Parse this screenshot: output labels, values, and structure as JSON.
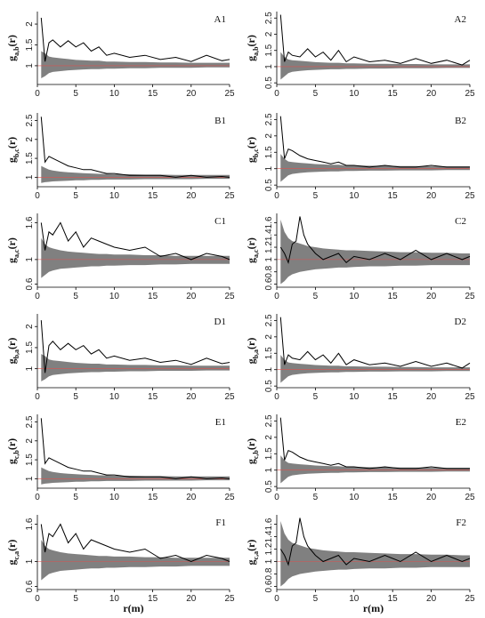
{
  "figure": {
    "x_axis_label": "r(m)",
    "y_label_prefix": "g",
    "y_label_suffix": "(r)"
  },
  "colors": {
    "envelope": "#808080",
    "observed": "#000000",
    "reference": "#d9534f",
    "axis": "#000000"
  },
  "chart_data": [
    {
      "type": "line",
      "label": "A1",
      "subscript": "a,b",
      "xlim": [
        0,
        25
      ],
      "ylim": [
        0.55,
        2.3
      ],
      "yticks": [
        0.5,
        1.0,
        1.5,
        2.0
      ],
      "xticks": [
        0,
        5,
        10,
        15,
        20,
        25
      ],
      "reference": 1.0,
      "x": [
        0.5,
        1,
        1.5,
        2,
        3,
        4,
        5,
        6,
        7,
        8,
        9,
        10,
        12,
        14,
        16,
        18,
        20,
        22,
        24,
        25
      ],
      "observed": [
        2.15,
        1.1,
        1.55,
        1.62,
        1.45,
        1.6,
        1.45,
        1.55,
        1.35,
        1.45,
        1.25,
        1.3,
        1.2,
        1.25,
        1.15,
        1.2,
        1.1,
        1.25,
        1.12,
        1.15
      ],
      "env_upper": [
        1.35,
        1.3,
        1.22,
        1.2,
        1.18,
        1.16,
        1.14,
        1.13,
        1.12,
        1.12,
        1.1,
        1.1,
        1.09,
        1.09,
        1.08,
        1.08,
        1.07,
        1.07,
        1.07,
        1.07
      ],
      "env_lower": [
        0.7,
        0.75,
        0.82,
        0.85,
        0.87,
        0.89,
        0.9,
        0.91,
        0.92,
        0.92,
        0.93,
        0.93,
        0.94,
        0.94,
        0.95,
        0.95,
        0.95,
        0.96,
        0.96,
        0.96
      ]
    },
    {
      "type": "line",
      "label": "A2",
      "subscript": "a,b",
      "xlim": [
        0,
        25
      ],
      "ylim": [
        0.45,
        2.7
      ],
      "yticks": [
        0.5,
        1.0,
        1.5,
        2.0,
        2.5
      ],
      "xticks": [
        0,
        5,
        10,
        15,
        20,
        25
      ],
      "reference": 1.0,
      "x": [
        0.5,
        1,
        1.5,
        2,
        3,
        4,
        5,
        6,
        7,
        8,
        9,
        10,
        12,
        14,
        16,
        18,
        20,
        22,
        24,
        25
      ],
      "observed": [
        2.6,
        1.15,
        1.45,
        1.35,
        1.3,
        1.55,
        1.3,
        1.45,
        1.2,
        1.5,
        1.15,
        1.3,
        1.15,
        1.2,
        1.1,
        1.25,
        1.1,
        1.2,
        1.05,
        1.2
      ],
      "env_upper": [
        1.45,
        1.3,
        1.22,
        1.2,
        1.18,
        1.16,
        1.14,
        1.13,
        1.12,
        1.12,
        1.1,
        1.1,
        1.09,
        1.09,
        1.08,
        1.08,
        1.07,
        1.07,
        1.07,
        1.07
      ],
      "env_lower": [
        0.6,
        0.7,
        0.8,
        0.84,
        0.87,
        0.89,
        0.9,
        0.91,
        0.92,
        0.92,
        0.93,
        0.93,
        0.94,
        0.94,
        0.95,
        0.95,
        0.95,
        0.96,
        0.96,
        0.96
      ]
    },
    {
      "type": "line",
      "label": "B1",
      "subscript": "b,c",
      "xlim": [
        0,
        25
      ],
      "ylim": [
        0.75,
        2.7
      ],
      "yticks": [
        1.0,
        1.5,
        2.0,
        2.5
      ],
      "xticks": [
        0,
        5,
        10,
        15,
        20,
        25
      ],
      "reference": 1.0,
      "x": [
        0.5,
        1,
        1.5,
        2,
        3,
        4,
        5,
        6,
        7,
        8,
        9,
        10,
        12,
        14,
        16,
        18,
        20,
        22,
        24,
        25
      ],
      "observed": [
        2.6,
        1.4,
        1.55,
        1.5,
        1.4,
        1.3,
        1.25,
        1.2,
        1.2,
        1.15,
        1.1,
        1.1,
        1.05,
        1.05,
        1.05,
        1.0,
        1.05,
        1.0,
        1.02,
        1.0
      ],
      "env_upper": [
        1.3,
        1.25,
        1.2,
        1.18,
        1.15,
        1.13,
        1.12,
        1.11,
        1.1,
        1.09,
        1.09,
        1.08,
        1.08,
        1.07,
        1.07,
        1.06,
        1.06,
        1.06,
        1.06,
        1.06
      ],
      "env_lower": [
        0.85,
        0.87,
        0.88,
        0.89,
        0.9,
        0.91,
        0.92,
        0.92,
        0.93,
        0.93,
        0.94,
        0.94,
        0.94,
        0.95,
        0.95,
        0.95,
        0.95,
        0.96,
        0.96,
        0.96
      ]
    },
    {
      "type": "line",
      "label": "B2",
      "subscript": "b,c",
      "xlim": [
        0,
        25
      ],
      "ylim": [
        0.45,
        2.7
      ],
      "yticks": [
        0.5,
        1.0,
        1.5,
        2.0,
        2.5
      ],
      "xticks": [
        0,
        5,
        10,
        15,
        20,
        25
      ],
      "reference": 1.0,
      "x": [
        0.5,
        1,
        1.5,
        2,
        3,
        4,
        5,
        6,
        7,
        8,
        9,
        10,
        12,
        14,
        16,
        18,
        20,
        22,
        24,
        25
      ],
      "observed": [
        2.6,
        1.3,
        1.6,
        1.55,
        1.4,
        1.3,
        1.25,
        1.2,
        1.15,
        1.2,
        1.1,
        1.1,
        1.05,
        1.1,
        1.05,
        1.05,
        1.1,
        1.05,
        1.05,
        1.05
      ],
      "env_upper": [
        1.45,
        1.3,
        1.22,
        1.2,
        1.18,
        1.16,
        1.14,
        1.13,
        1.12,
        1.12,
        1.1,
        1.1,
        1.09,
        1.09,
        1.08,
        1.08,
        1.07,
        1.07,
        1.07,
        1.07
      ],
      "env_lower": [
        0.6,
        0.7,
        0.8,
        0.84,
        0.87,
        0.89,
        0.9,
        0.91,
        0.92,
        0.92,
        0.93,
        0.93,
        0.94,
        0.94,
        0.95,
        0.95,
        0.95,
        0.96,
        0.96,
        0.96
      ]
    },
    {
      "type": "line",
      "label": "C1",
      "subscript": "a,c",
      "xlim": [
        0,
        25
      ],
      "ylim": [
        0.55,
        1.75
      ],
      "yticks": [
        0.6,
        1.0,
        1.6
      ],
      "xticks": [
        0,
        5,
        10,
        15,
        20,
        25
      ],
      "reference": 1.0,
      "x": [
        0.5,
        1,
        1.5,
        2,
        3,
        4,
        5,
        6,
        7,
        8,
        9,
        10,
        12,
        14,
        16,
        18,
        20,
        22,
        24,
        25
      ],
      "observed": [
        1.6,
        1.15,
        1.45,
        1.4,
        1.6,
        1.3,
        1.45,
        1.2,
        1.35,
        1.3,
        1.25,
        1.2,
        1.15,
        1.2,
        1.05,
        1.1,
        1.0,
        1.1,
        1.05,
        1.0
      ],
      "env_upper": [
        1.35,
        1.25,
        1.2,
        1.18,
        1.15,
        1.13,
        1.12,
        1.11,
        1.1,
        1.09,
        1.09,
        1.08,
        1.08,
        1.07,
        1.07,
        1.06,
        1.06,
        1.06,
        1.06,
        1.06
      ],
      "env_lower": [
        0.7,
        0.75,
        0.8,
        0.82,
        0.85,
        0.86,
        0.87,
        0.88,
        0.89,
        0.89,
        0.9,
        0.9,
        0.91,
        0.91,
        0.92,
        0.92,
        0.93,
        0.93,
        0.93,
        0.93
      ]
    },
    {
      "type": "line",
      "label": "C2",
      "subscript": "a,c",
      "xlim": [
        0,
        25
      ],
      "ylim": [
        0.55,
        1.75
      ],
      "yticks": [
        0.6,
        0.8,
        1.0,
        1.2,
        1.4,
        1.6
      ],
      "xticks": [
        0,
        5,
        10,
        15,
        20,
        25
      ],
      "reference": 1.0,
      "x": [
        0.5,
        1,
        1.5,
        2,
        2.5,
        3,
        3.5,
        4,
        5,
        6,
        7,
        8,
        9,
        10,
        12,
        14,
        16,
        18,
        20,
        22,
        24,
        25
      ],
      "observed": [
        1.2,
        1.1,
        0.95,
        1.25,
        1.3,
        1.7,
        1.4,
        1.25,
        1.1,
        1.0,
        1.05,
        1.1,
        0.95,
        1.05,
        1.0,
        1.1,
        1.0,
        1.15,
        1.0,
        1.1,
        1.0,
        1.05
      ],
      "env_upper": [
        1.65,
        1.45,
        1.35,
        1.3,
        1.28,
        1.26,
        1.24,
        1.22,
        1.2,
        1.18,
        1.17,
        1.16,
        1.15,
        1.15,
        1.14,
        1.13,
        1.12,
        1.12,
        1.11,
        1.11,
        1.1,
        1.1
      ],
      "env_lower": [
        0.6,
        0.65,
        0.72,
        0.76,
        0.78,
        0.8,
        0.81,
        0.82,
        0.84,
        0.85,
        0.86,
        0.87,
        0.87,
        0.88,
        0.89,
        0.89,
        0.9,
        0.9,
        0.91,
        0.91,
        0.91,
        0.91
      ]
    },
    {
      "type": "line",
      "label": "D1",
      "subscript": "b,a",
      "xlim": [
        0,
        25
      ],
      "ylim": [
        0.55,
        2.3
      ],
      "yticks": [
        1.0,
        1.5,
        2.0
      ],
      "xticks": [
        0,
        5,
        10,
        15,
        20,
        25
      ],
      "reference": 1.0,
      "x": [
        0.5,
        1,
        1.5,
        2,
        3,
        4,
        5,
        6,
        7,
        8,
        9,
        10,
        12,
        14,
        16,
        18,
        20,
        22,
        24,
        25
      ],
      "observed": [
        2.15,
        0.9,
        1.55,
        1.65,
        1.45,
        1.6,
        1.45,
        1.55,
        1.35,
        1.45,
        1.25,
        1.3,
        1.2,
        1.25,
        1.15,
        1.2,
        1.1,
        1.25,
        1.12,
        1.15
      ],
      "env_upper": [
        1.35,
        1.3,
        1.22,
        1.2,
        1.18,
        1.16,
        1.14,
        1.13,
        1.12,
        1.12,
        1.1,
        1.1,
        1.09,
        1.09,
        1.08,
        1.08,
        1.07,
        1.07,
        1.07,
        1.07
      ],
      "env_lower": [
        0.7,
        0.75,
        0.82,
        0.85,
        0.87,
        0.89,
        0.9,
        0.91,
        0.92,
        0.92,
        0.93,
        0.93,
        0.94,
        0.94,
        0.95,
        0.95,
        0.95,
        0.96,
        0.96,
        0.96
      ]
    },
    {
      "type": "line",
      "label": "D2",
      "subscript": "b,a",
      "xlim": [
        0,
        25
      ],
      "ylim": [
        0.45,
        2.7
      ],
      "yticks": [
        0.5,
        1.0,
        1.5,
        2.0,
        2.5
      ],
      "xticks": [
        0,
        5,
        10,
        15,
        20,
        25
      ],
      "reference": 1.0,
      "x": [
        0.5,
        1,
        1.5,
        2,
        3,
        4,
        5,
        6,
        7,
        8,
        9,
        10,
        12,
        14,
        16,
        18,
        20,
        22,
        24,
        25
      ],
      "observed": [
        2.6,
        1.15,
        1.45,
        1.35,
        1.3,
        1.55,
        1.3,
        1.45,
        1.2,
        1.5,
        1.15,
        1.3,
        1.15,
        1.2,
        1.1,
        1.25,
        1.1,
        1.2,
        1.05,
        1.2
      ],
      "env_upper": [
        1.45,
        1.3,
        1.22,
        1.2,
        1.18,
        1.16,
        1.14,
        1.13,
        1.12,
        1.12,
        1.1,
        1.1,
        1.09,
        1.09,
        1.08,
        1.08,
        1.07,
        1.07,
        1.07,
        1.07
      ],
      "env_lower": [
        0.6,
        0.7,
        0.8,
        0.84,
        0.87,
        0.89,
        0.9,
        0.91,
        0.92,
        0.92,
        0.93,
        0.93,
        0.94,
        0.94,
        0.95,
        0.95,
        0.95,
        0.96,
        0.96,
        0.96
      ]
    },
    {
      "type": "line",
      "label": "E1",
      "subscript": "c,b",
      "xlim": [
        0,
        25
      ],
      "ylim": [
        0.75,
        2.7
      ],
      "yticks": [
        1.0,
        1.5,
        2.0,
        2.5
      ],
      "xticks": [
        0,
        5,
        10,
        15,
        20,
        25
      ],
      "reference": 1.0,
      "x": [
        0.5,
        1,
        1.5,
        2,
        3,
        4,
        5,
        6,
        7,
        8,
        9,
        10,
        12,
        14,
        16,
        18,
        20,
        22,
        24,
        25
      ],
      "observed": [
        2.6,
        1.4,
        1.55,
        1.5,
        1.4,
        1.3,
        1.25,
        1.2,
        1.2,
        1.15,
        1.1,
        1.1,
        1.05,
        1.05,
        1.05,
        1.0,
        1.05,
        1.0,
        1.02,
        1.0
      ],
      "env_upper": [
        1.3,
        1.25,
        1.2,
        1.18,
        1.15,
        1.13,
        1.12,
        1.11,
        1.1,
        1.09,
        1.09,
        1.08,
        1.08,
        1.07,
        1.07,
        1.06,
        1.06,
        1.06,
        1.06,
        1.06
      ],
      "env_lower": [
        0.85,
        0.87,
        0.88,
        0.89,
        0.9,
        0.91,
        0.92,
        0.92,
        0.93,
        0.93,
        0.94,
        0.94,
        0.94,
        0.95,
        0.95,
        0.95,
        0.95,
        0.96,
        0.96,
        0.96
      ]
    },
    {
      "type": "line",
      "label": "E2",
      "subscript": "c,b",
      "xlim": [
        0,
        25
      ],
      "ylim": [
        0.45,
        2.7
      ],
      "yticks": [
        0.5,
        1.0,
        1.5,
        2.0,
        2.5
      ],
      "xticks": [
        0,
        5,
        10,
        15,
        20,
        25
      ],
      "reference": 1.0,
      "x": [
        0.5,
        1,
        1.5,
        2,
        3,
        4,
        5,
        6,
        7,
        8,
        9,
        10,
        12,
        14,
        16,
        18,
        20,
        22,
        24,
        25
      ],
      "observed": [
        2.6,
        1.3,
        1.6,
        1.55,
        1.4,
        1.3,
        1.25,
        1.2,
        1.15,
        1.2,
        1.1,
        1.1,
        1.05,
        1.1,
        1.05,
        1.05,
        1.1,
        1.05,
        1.05,
        1.05
      ],
      "env_upper": [
        1.45,
        1.3,
        1.22,
        1.2,
        1.18,
        1.16,
        1.14,
        1.13,
        1.12,
        1.12,
        1.1,
        1.1,
        1.09,
        1.09,
        1.08,
        1.08,
        1.07,
        1.07,
        1.07,
        1.07
      ],
      "env_lower": [
        0.6,
        0.7,
        0.8,
        0.84,
        0.87,
        0.89,
        0.9,
        0.91,
        0.92,
        0.92,
        0.93,
        0.93,
        0.94,
        0.94,
        0.95,
        0.95,
        0.95,
        0.96,
        0.96,
        0.96
      ]
    },
    {
      "type": "line",
      "label": "F1",
      "subscript": "c,a",
      "xlim": [
        0,
        25
      ],
      "ylim": [
        0.55,
        1.75
      ],
      "yticks": [
        0.6,
        1.0,
        1.6
      ],
      "xticks": [
        0,
        5,
        10,
        15,
        20,
        25
      ],
      "reference": 1.0,
      "x": [
        0.5,
        1,
        1.5,
        2,
        3,
        4,
        5,
        6,
        7,
        8,
        9,
        10,
        12,
        14,
        16,
        18,
        20,
        22,
        24,
        25
      ],
      "observed": [
        1.6,
        1.15,
        1.45,
        1.4,
        1.6,
        1.3,
        1.45,
        1.2,
        1.35,
        1.3,
        1.25,
        1.2,
        1.15,
        1.2,
        1.05,
        1.1,
        1.0,
        1.1,
        1.05,
        1.0
      ],
      "env_upper": [
        1.35,
        1.25,
        1.2,
        1.18,
        1.15,
        1.13,
        1.12,
        1.11,
        1.1,
        1.09,
        1.09,
        1.08,
        1.08,
        1.07,
        1.07,
        1.06,
        1.06,
        1.06,
        1.06,
        1.06
      ],
      "env_lower": [
        0.7,
        0.75,
        0.8,
        0.82,
        0.85,
        0.86,
        0.87,
        0.88,
        0.89,
        0.89,
        0.9,
        0.9,
        0.91,
        0.91,
        0.92,
        0.92,
        0.93,
        0.93,
        0.93,
        0.93
      ]
    },
    {
      "type": "line",
      "label": "F2",
      "subscript": "c,a",
      "xlim": [
        0,
        25
      ],
      "ylim": [
        0.55,
        1.75
      ],
      "yticks": [
        0.6,
        0.8,
        1.0,
        1.2,
        1.4,
        1.6
      ],
      "xticks": [
        0,
        5,
        10,
        15,
        20,
        25
      ],
      "reference": 1.0,
      "x": [
        0.5,
        1,
        1.5,
        2,
        2.5,
        3,
        3.5,
        4,
        5,
        6,
        7,
        8,
        9,
        10,
        12,
        14,
        16,
        18,
        20,
        22,
        24,
        25
      ],
      "observed": [
        1.2,
        1.1,
        0.95,
        1.25,
        1.3,
        1.7,
        1.4,
        1.25,
        1.1,
        1.0,
        1.05,
        1.1,
        0.95,
        1.05,
        1.0,
        1.1,
        1.0,
        1.15,
        1.0,
        1.1,
        1.0,
        1.05
      ],
      "env_upper": [
        1.65,
        1.45,
        1.35,
        1.3,
        1.28,
        1.26,
        1.24,
        1.22,
        1.2,
        1.18,
        1.17,
        1.16,
        1.15,
        1.15,
        1.14,
        1.13,
        1.12,
        1.12,
        1.11,
        1.11,
        1.1,
        1.1
      ],
      "env_lower": [
        0.6,
        0.65,
        0.72,
        0.76,
        0.78,
        0.8,
        0.81,
        0.82,
        0.84,
        0.85,
        0.86,
        0.87,
        0.87,
        0.88,
        0.89,
        0.89,
        0.9,
        0.9,
        0.91,
        0.91,
        0.91,
        0.91
      ]
    }
  ]
}
